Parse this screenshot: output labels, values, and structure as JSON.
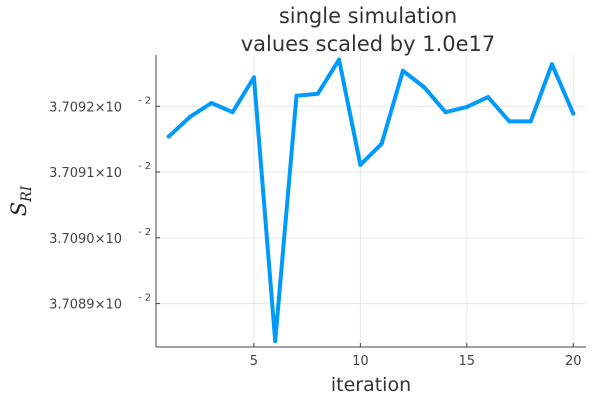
{
  "chart_data": {
    "type": "line",
    "title": "single simulation",
    "subtitle": "values scaled by 1.0e17",
    "xlabel": "iteration",
    "ylabel_main": "S",
    "ylabel_sub": "RI",
    "grid": true,
    "legend": false,
    "xlim": [
      0.4,
      20.6
    ],
    "ylim": [
      37.08854,
      37.09298
    ],
    "xticks": [
      5,
      10,
      15,
      20
    ],
    "xtick_labels": [
      "5",
      "10",
      "15",
      "20"
    ],
    "yticks": [
      37.0892,
      37.0902,
      37.0912,
      37.0922
    ],
    "ytick_labels": [
      {
        "mantissa": "3.7089×10",
        "exponent": "- 2"
      },
      {
        "mantissa": "3.7090×10",
        "exponent": "- 2"
      },
      {
        "mantissa": "3.7091×10",
        "exponent": "- 2"
      },
      {
        "mantissa": "3.7092×10",
        "exponent": "- 2"
      }
    ],
    "series": [
      {
        "color": "#009AFA",
        "x": [
          1,
          2,
          3,
          4,
          5,
          6,
          7,
          8,
          9,
          10,
          11,
          12,
          13,
          14,
          15,
          16,
          17,
          18,
          19,
          20
        ],
        "y": [
          37.09174,
          37.09204,
          37.09225,
          37.09211,
          37.09264,
          37.08863,
          37.09236,
          37.09239,
          37.09291,
          37.09131,
          37.09163,
          37.09274,
          37.09249,
          37.09211,
          37.09219,
          37.09234,
          37.09197,
          37.09197,
          37.09284,
          37.09209
        ]
      }
    ]
  }
}
